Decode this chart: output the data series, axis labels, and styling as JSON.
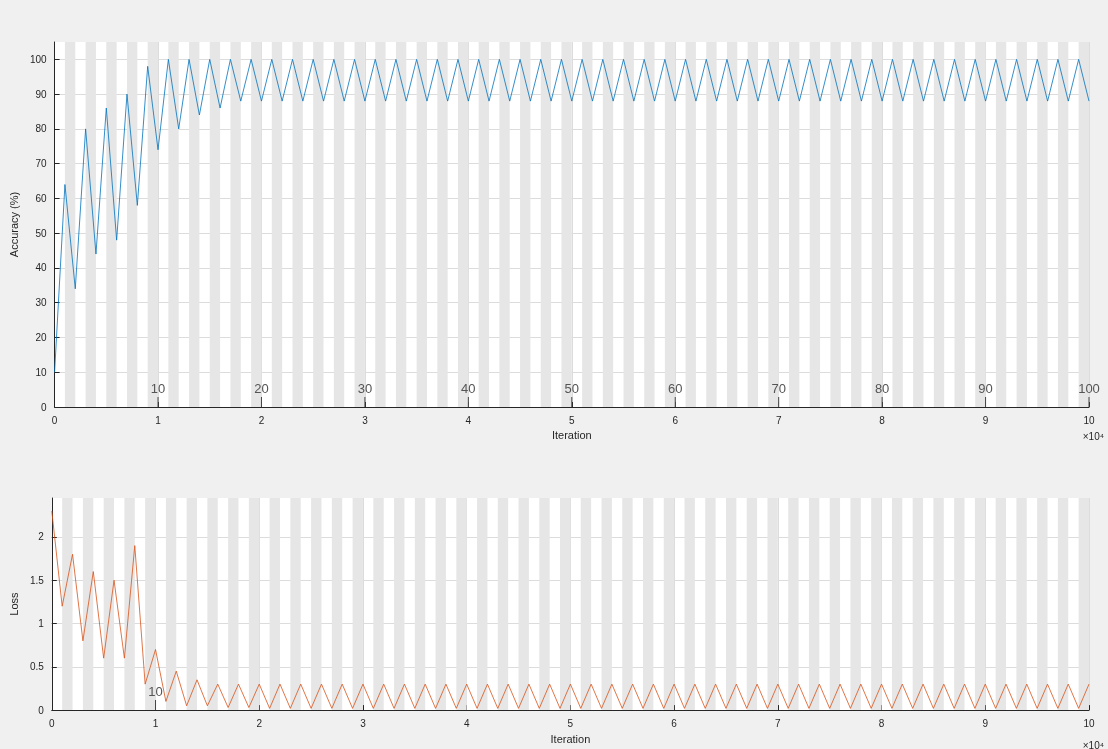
{
  "chart_data": [
    {
      "type": "line",
      "xlabel": "Iteration",
      "ylabel": "Accuracy (%)",
      "xlim": [
        0,
        10
      ],
      "xticks": [
        0,
        1,
        2,
        3,
        4,
        5,
        6,
        7,
        8,
        9,
        10
      ],
      "ylim": [
        0,
        105
      ],
      "yticks": [
        0,
        10,
        20,
        30,
        40,
        50,
        60,
        70,
        80,
        90,
        100
      ],
      "grid": true,
      "marker": "none",
      "line_style": "solid",
      "x": [
        0,
        0.1,
        0.2,
        0.3,
        0.4,
        0.5,
        0.6,
        0.7,
        0.8,
        0.9,
        1,
        1.1,
        1.2,
        1.3,
        1.4,
        1.5,
        1.6,
        1.7,
        1.8,
        1.9,
        2,
        2.1,
        2.2,
        2.3,
        2.4,
        2.5,
        2.6,
        2.7,
        2.8,
        2.9,
        3,
        3.1,
        3.2,
        3.3,
        3.4,
        3.5,
        3.6,
        3.7,
        3.8,
        3.9,
        4,
        4.1,
        4.2,
        4.3,
        4.4,
        4.5,
        4.6,
        4.7,
        4.8,
        4.9,
        5,
        5.1,
        5.2,
        5.3,
        5.4,
        5.5,
        5.6,
        5.7,
        5.8,
        5.9,
        6,
        6.1,
        6.2,
        6.3,
        6.4,
        6.5,
        6.6,
        6.7,
        6.8,
        6.9,
        7,
        7.1,
        7.2,
        7.3,
        7.4,
        7.5,
        7.6,
        7.7,
        7.8,
        7.9,
        8,
        8.1,
        8.2,
        8.3,
        8.4,
        8.5,
        8.6,
        8.7,
        8.8,
        8.9,
        9,
        9.1,
        9.2,
        9.3,
        9.4,
        9.5,
        9.6,
        9.7,
        9.8,
        9.9,
        10
      ],
      "series": [
        {
          "color": "#0072bd",
          "values": [
            10,
            64,
            34,
            80,
            44,
            86,
            48,
            90,
            58,
            98,
            74,
            100,
            80,
            100,
            84,
            100,
            86,
            100,
            88,
            100,
            88,
            100,
            88,
            100,
            88,
            100,
            88,
            100,
            88,
            100,
            88,
            100,
            88,
            100,
            88,
            100,
            88,
            100,
            88,
            100,
            88,
            100,
            88,
            100,
            88,
            100,
            88,
            100,
            88,
            100,
            88,
            100,
            88,
            100,
            88,
            100,
            88,
            100,
            88,
            100,
            88,
            100,
            88,
            100,
            88,
            100,
            88,
            100,
            88,
            100,
            88,
            100,
            88,
            100,
            88,
            100,
            88,
            100,
            88,
            100,
            88,
            100,
            88,
            100,
            88,
            100,
            88,
            100,
            88,
            100,
            88,
            100,
            88,
            100,
            88,
            100,
            88,
            100,
            88,
            100,
            88
          ]
        }
      ],
      "bands": [
        {
          "axis": "x",
          "from": 0.1,
          "to": 0.2,
          "color": "#e6e6e6"
        },
        {
          "axis": "x",
          "from": 0.3,
          "to": 0.4,
          "color": "#e6e6e6"
        },
        {
          "axis": "x",
          "from": 0.5,
          "to": 0.6,
          "color": "#e6e6e6"
        },
        {
          "axis": "x",
          "from": 0.7,
          "to": 0.8,
          "color": "#e6e6e6"
        },
        {
          "axis": "x",
          "from": 0.9,
          "to": 1.0,
          "color": "#e6e6e6"
        },
        {
          "axis": "x",
          "from": 1.1,
          "to": 1.2,
          "color": "#e6e6e6"
        },
        {
          "axis": "x",
          "from": 1.3,
          "to": 1.4,
          "color": "#e6e6e6"
        },
        {
          "axis": "x",
          "from": 1.5,
          "to": 1.6,
          "color": "#e6e6e6"
        },
        {
          "axis": "x",
          "from": 1.7,
          "to": 1.8,
          "color": "#e6e6e6"
        },
        {
          "axis": "x",
          "from": 1.9,
          "to": 2.0,
          "color": "#e6e6e6"
        },
        {
          "axis": "x",
          "from": 2.1,
          "to": 2.2,
          "color": "#e6e6e6"
        },
        {
          "axis": "x",
          "from": 2.3,
          "to": 2.4,
          "color": "#e6e6e6"
        },
        {
          "axis": "x",
          "from": 2.5,
          "to": 2.6,
          "color": "#e6e6e6"
        },
        {
          "axis": "x",
          "from": 2.7,
          "to": 2.8,
          "color": "#e6e6e6"
        },
        {
          "axis": "x",
          "from": 2.9,
          "to": 3.0,
          "color": "#e6e6e6"
        },
        {
          "axis": "x",
          "from": 3.1,
          "to": 3.2,
          "color": "#e6e6e6"
        },
        {
          "axis": "x",
          "from": 3.3,
          "to": 3.4,
          "color": "#e6e6e6"
        },
        {
          "axis": "x",
          "from": 3.5,
          "to": 3.6,
          "color": "#e6e6e6"
        },
        {
          "axis": "x",
          "from": 3.7,
          "to": 3.8,
          "color": "#e6e6e6"
        },
        {
          "axis": "x",
          "from": 3.9,
          "to": 4.0,
          "color": "#e6e6e6"
        },
        {
          "axis": "x",
          "from": 4.1,
          "to": 4.2,
          "color": "#e6e6e6"
        },
        {
          "axis": "x",
          "from": 4.3,
          "to": 4.4,
          "color": "#e6e6e6"
        },
        {
          "axis": "x",
          "from": 4.5,
          "to": 4.6,
          "color": "#e6e6e6"
        },
        {
          "axis": "x",
          "from": 4.7,
          "to": 4.8,
          "color": "#e6e6e6"
        },
        {
          "axis": "x",
          "from": 4.9,
          "to": 5.0,
          "color": "#e6e6e6"
        },
        {
          "axis": "x",
          "from": 5.1,
          "to": 5.2,
          "color": "#e6e6e6"
        },
        {
          "axis": "x",
          "from": 5.3,
          "to": 5.4,
          "color": "#e6e6e6"
        },
        {
          "axis": "x",
          "from": 5.5,
          "to": 5.6,
          "color": "#e6e6e6"
        },
        {
          "axis": "x",
          "from": 5.7,
          "to": 5.8,
          "color": "#e6e6e6"
        },
        {
          "axis": "x",
          "from": 5.9,
          "to": 6.0,
          "color": "#e6e6e6"
        },
        {
          "axis": "x",
          "from": 6.1,
          "to": 6.2,
          "color": "#e6e6e6"
        },
        {
          "axis": "x",
          "from": 6.3,
          "to": 6.4,
          "color": "#e6e6e6"
        },
        {
          "axis": "x",
          "from": 6.5,
          "to": 6.6,
          "color": "#e6e6e6"
        },
        {
          "axis": "x",
          "from": 6.7,
          "to": 6.8,
          "color": "#e6e6e6"
        },
        {
          "axis": "x",
          "from": 6.9,
          "to": 7.0,
          "color": "#e6e6e6"
        },
        {
          "axis": "x",
          "from": 7.1,
          "to": 7.2,
          "color": "#e6e6e6"
        },
        {
          "axis": "x",
          "from": 7.3,
          "to": 7.4,
          "color": "#e6e6e6"
        },
        {
          "axis": "x",
          "from": 7.5,
          "to": 7.6,
          "color": "#e6e6e6"
        },
        {
          "axis": "x",
          "from": 7.7,
          "to": 7.8,
          "color": "#e6e6e6"
        },
        {
          "axis": "x",
          "from": 7.9,
          "to": 8.0,
          "color": "#e6e6e6"
        },
        {
          "axis": "x",
          "from": 8.1,
          "to": 8.2,
          "color": "#e6e6e6"
        },
        {
          "axis": "x",
          "from": 8.3,
          "to": 8.4,
          "color": "#e6e6e6"
        },
        {
          "axis": "x",
          "from": 8.5,
          "to": 8.6,
          "color": "#e6e6e6"
        },
        {
          "axis": "x",
          "from": 8.7,
          "to": 8.8,
          "color": "#e6e6e6"
        },
        {
          "axis": "x",
          "from": 8.9,
          "to": 9.0,
          "color": "#e6e6e6"
        },
        {
          "axis": "x",
          "from": 9.1,
          "to": 9.2,
          "color": "#e6e6e6"
        },
        {
          "axis": "x",
          "from": 9.3,
          "to": 9.4,
          "color": "#e6e6e6"
        },
        {
          "axis": "x",
          "from": 9.5,
          "to": 9.6,
          "color": "#e6e6e6"
        },
        {
          "axis": "x",
          "from": 9.7,
          "to": 9.8,
          "color": "#e6e6e6"
        },
        {
          "axis": "x",
          "from": 9.9,
          "to": 10.0,
          "color": "#e6e6e6"
        }
      ],
      "annotations": [
        {
          "text": "10",
          "x": 1,
          "y": 0
        },
        {
          "text": "20",
          "x": 2,
          "y": 0
        },
        {
          "text": "30",
          "x": 3,
          "y": 0
        },
        {
          "text": "40",
          "x": 4,
          "y": 0
        },
        {
          "text": "50",
          "x": 5,
          "y": 0
        },
        {
          "text": "60",
          "x": 6,
          "y": 0
        },
        {
          "text": "70",
          "x": 7,
          "y": 0
        },
        {
          "text": "80",
          "x": 8,
          "y": 0
        },
        {
          "text": "90",
          "x": 9,
          "y": 0
        },
        {
          "text": "100",
          "x": 10,
          "y": 0
        },
        "×10⁴"
      ]
    },
    {
      "type": "line",
      "xlabel": "Iteration",
      "ylabel": "Loss",
      "xlim": [
        0,
        10
      ],
      "xticks": [
        0,
        1,
        2,
        3,
        4,
        5,
        6,
        7,
        8,
        9,
        10
      ],
      "ylim": [
        0,
        2.45
      ],
      "yticks": [
        0,
        0.5,
        1,
        1.5,
        2
      ],
      "grid": true,
      "marker": "none",
      "line_style": "solid",
      "x": [
        0,
        0.1,
        0.2,
        0.3,
        0.4,
        0.5,
        0.6,
        0.7,
        0.8,
        0.9,
        1,
        1.1,
        1.2,
        1.3,
        1.4,
        1.5,
        1.6,
        1.7,
        1.8,
        1.9,
        2,
        2.1,
        2.2,
        2.3,
        2.4,
        2.5,
        2.6,
        2.7,
        2.8,
        2.9,
        3,
        3.1,
        3.2,
        3.3,
        3.4,
        3.5,
        3.6,
        3.7,
        3.8,
        3.9,
        4,
        4.1,
        4.2,
        4.3,
        4.4,
        4.5,
        4.6,
        4.7,
        4.8,
        4.9,
        5,
        5.1,
        5.2,
        5.3,
        5.4,
        5.5,
        5.6,
        5.7,
        5.8,
        5.9,
        6,
        6.1,
        6.2,
        6.3,
        6.4,
        6.5,
        6.6,
        6.7,
        6.8,
        6.9,
        7,
        7.1,
        7.2,
        7.3,
        7.4,
        7.5,
        7.6,
        7.7,
        7.8,
        7.9,
        8,
        8.1,
        8.2,
        8.3,
        8.4,
        8.5,
        8.6,
        8.7,
        8.8,
        8.9,
        9,
        9.1,
        9.2,
        9.3,
        9.4,
        9.5,
        9.6,
        9.7,
        9.8,
        9.9,
        10
      ],
      "series": [
        {
          "color": "#d95319",
          "values": [
            2.3,
            1.2,
            1.8,
            0.8,
            1.6,
            0.6,
            1.5,
            0.6,
            1.9,
            0.3,
            0.7,
            0.1,
            0.45,
            0.05,
            0.35,
            0.05,
            0.3,
            0.03,
            0.3,
            0.03,
            0.3,
            0.02,
            0.3,
            0.02,
            0.3,
            0.02,
            0.3,
            0.02,
            0.3,
            0.02,
            0.3,
            0.02,
            0.3,
            0.02,
            0.3,
            0.02,
            0.3,
            0.02,
            0.3,
            0.02,
            0.3,
            0.02,
            0.3,
            0.02,
            0.3,
            0.02,
            0.3,
            0.02,
            0.3,
            0.02,
            0.3,
            0.02,
            0.3,
            0.02,
            0.3,
            0.02,
            0.3,
            0.02,
            0.3,
            0.02,
            0.3,
            0.02,
            0.3,
            0.02,
            0.3,
            0.02,
            0.3,
            0.02,
            0.3,
            0.02,
            0.3,
            0.02,
            0.3,
            0.02,
            0.3,
            0.02,
            0.3,
            0.02,
            0.3,
            0.02,
            0.3,
            0.02,
            0.3,
            0.02,
            0.3,
            0.02,
            0.3,
            0.02,
            0.3,
            0.02,
            0.3,
            0.02,
            0.3,
            0.02,
            0.3,
            0.02,
            0.3,
            0.02,
            0.3,
            0.02,
            0.3
          ]
        }
      ],
      "bands": [
        {
          "axis": "x",
          "from": 0.1,
          "to": 0.2,
          "color": "#e6e6e6"
        },
        {
          "axis": "x",
          "from": 0.3,
          "to": 0.4,
          "color": "#e6e6e6"
        },
        {
          "axis": "x",
          "from": 0.5,
          "to": 0.6,
          "color": "#e6e6e6"
        },
        {
          "axis": "x",
          "from": 0.7,
          "to": 0.8,
          "color": "#e6e6e6"
        },
        {
          "axis": "x",
          "from": 0.9,
          "to": 1.0,
          "color": "#e6e6e6"
        },
        {
          "axis": "x",
          "from": 1.1,
          "to": 1.2,
          "color": "#e6e6e6"
        },
        {
          "axis": "x",
          "from": 1.3,
          "to": 1.4,
          "color": "#e6e6e6"
        },
        {
          "axis": "x",
          "from": 1.5,
          "to": 1.6,
          "color": "#e6e6e6"
        },
        {
          "axis": "x",
          "from": 1.7,
          "to": 1.8,
          "color": "#e6e6e6"
        },
        {
          "axis": "x",
          "from": 1.9,
          "to": 2.0,
          "color": "#e6e6e6"
        },
        {
          "axis": "x",
          "from": 2.1,
          "to": 2.2,
          "color": "#e6e6e6"
        },
        {
          "axis": "x",
          "from": 2.3,
          "to": 2.4,
          "color": "#e6e6e6"
        },
        {
          "axis": "x",
          "from": 2.5,
          "to": 2.6,
          "color": "#e6e6e6"
        },
        {
          "axis": "x",
          "from": 2.7,
          "to": 2.8,
          "color": "#e6e6e6"
        },
        {
          "axis": "x",
          "from": 2.9,
          "to": 3.0,
          "color": "#e6e6e6"
        },
        {
          "axis": "x",
          "from": 3.1,
          "to": 3.2,
          "color": "#e6e6e6"
        },
        {
          "axis": "x",
          "from": 3.3,
          "to": 3.4,
          "color": "#e6e6e6"
        },
        {
          "axis": "x",
          "from": 3.5,
          "to": 3.6,
          "color": "#e6e6e6"
        },
        {
          "axis": "x",
          "from": 3.7,
          "to": 3.8,
          "color": "#e6e6e6"
        },
        {
          "axis": "x",
          "from": 3.9,
          "to": 4.0,
          "color": "#e6e6e6"
        },
        {
          "axis": "x",
          "from": 4.1,
          "to": 4.2,
          "color": "#e6e6e6"
        },
        {
          "axis": "x",
          "from": 4.3,
          "to": 4.4,
          "color": "#e6e6e6"
        },
        {
          "axis": "x",
          "from": 4.5,
          "to": 4.6,
          "color": "#e6e6e6"
        },
        {
          "axis": "x",
          "from": 4.7,
          "to": 4.8,
          "color": "#e6e6e6"
        },
        {
          "axis": "x",
          "from": 4.9,
          "to": 5.0,
          "color": "#e6e6e6"
        },
        {
          "axis": "x",
          "from": 5.1,
          "to": 5.2,
          "color": "#e6e6e6"
        },
        {
          "axis": "x",
          "from": 5.3,
          "to": 5.4,
          "color": "#e6e6e6"
        },
        {
          "axis": "x",
          "from": 5.5,
          "to": 5.6,
          "color": "#e6e6e6"
        },
        {
          "axis": "x",
          "from": 5.7,
          "to": 5.8,
          "color": "#e6e6e6"
        },
        {
          "axis": "x",
          "from": 5.9,
          "to": 6.0,
          "color": "#e6e6e6"
        },
        {
          "axis": "x",
          "from": 6.1,
          "to": 6.2,
          "color": "#e6e6e6"
        },
        {
          "axis": "x",
          "from": 6.3,
          "to": 6.4,
          "color": "#e6e6e6"
        },
        {
          "axis": "x",
          "from": 6.5,
          "to": 6.6,
          "color": "#e6e6e6"
        },
        {
          "axis": "x",
          "from": 6.7,
          "to": 6.8,
          "color": "#e6e6e6"
        },
        {
          "axis": "x",
          "from": 6.9,
          "to": 7.0,
          "color": "#e6e6e6"
        },
        {
          "axis": "x",
          "from": 7.1,
          "to": 7.2,
          "color": "#e6e6e6"
        },
        {
          "axis": "x",
          "from": 7.3,
          "to": 7.4,
          "color": "#e6e6e6"
        },
        {
          "axis": "x",
          "from": 7.5,
          "to": 7.6,
          "color": "#e6e6e6"
        },
        {
          "axis": "x",
          "from": 7.7,
          "to": 7.8,
          "color": "#e6e6e6"
        },
        {
          "axis": "x",
          "from": 7.9,
          "to": 8.0,
          "color": "#e6e6e6"
        },
        {
          "axis": "x",
          "from": 8.1,
          "to": 8.2,
          "color": "#e6e6e6"
        },
        {
          "axis": "x",
          "from": 8.3,
          "to": 8.4,
          "color": "#e6e6e6"
        },
        {
          "axis": "x",
          "from": 8.5,
          "to": 8.6,
          "color": "#e6e6e6"
        },
        {
          "axis": "x",
          "from": 8.7,
          "to": 8.8,
          "color": "#e6e6e6"
        },
        {
          "axis": "x",
          "from": 8.9,
          "to": 9.0,
          "color": "#e6e6e6"
        },
        {
          "axis": "x",
          "from": 9.1,
          "to": 9.2,
          "color": "#e6e6e6"
        },
        {
          "axis": "x",
          "from": 9.3,
          "to": 9.4,
          "color": "#e6e6e6"
        },
        {
          "axis": "x",
          "from": 9.5,
          "to": 9.6,
          "color": "#e6e6e6"
        },
        {
          "axis": "x",
          "from": 9.7,
          "to": 9.8,
          "color": "#e6e6e6"
        },
        {
          "axis": "x",
          "from": 9.9,
          "to": 10.0,
          "color": "#e6e6e6"
        }
      ],
      "annotations": [
        {
          "text": "10",
          "x": 1,
          "y": 0
        },
        "×10⁴"
      ]
    }
  ]
}
